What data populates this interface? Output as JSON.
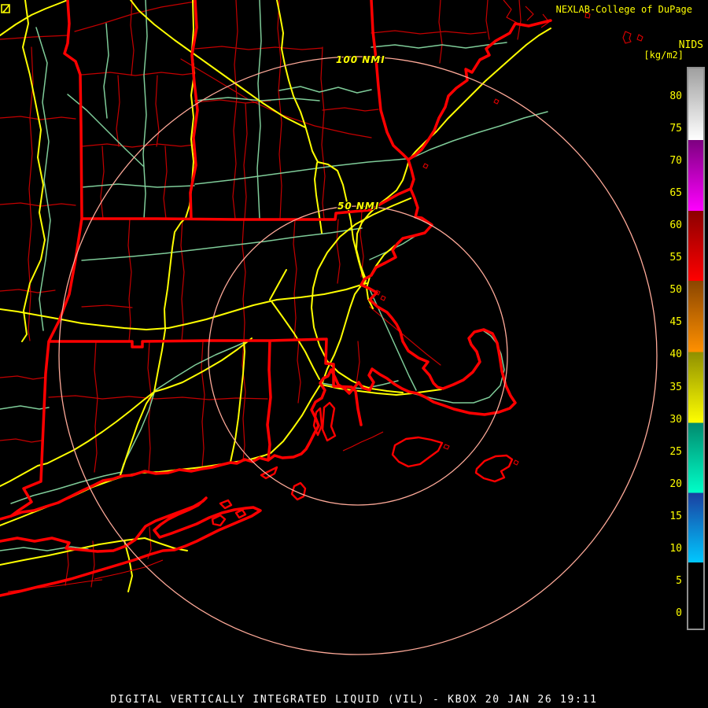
{
  "attribution": {
    "text": "NEXLAB-College of DuPage",
    "logo_icon": "cod-logo-icon"
  },
  "colorbar": {
    "title": "NIDS",
    "units": "[kg/m2]",
    "tick_labels": [
      "80",
      "75",
      "70",
      "65",
      "60",
      "55",
      "50",
      "45",
      "40",
      "35",
      "30",
      "25",
      "20",
      "15",
      "10",
      "5",
      "0"
    ],
    "segments": [
      {
        "name": "gray",
        "color_top": "#a0a0a0",
        "color_bottom": "#ffffff",
        "start_pct": 0,
        "end_pct": 12.8
      },
      {
        "name": "magenta",
        "color_top": "#7d0080",
        "color_bottom": "#ff00ff",
        "start_pct": 12.8,
        "end_pct": 25.4
      },
      {
        "name": "red",
        "color_top": "#8b0000",
        "color_bottom": "#ff0000",
        "start_pct": 25.4,
        "end_pct": 37.9
      },
      {
        "name": "orange",
        "color_top": "#8a4500",
        "color_bottom": "#ff9000",
        "start_pct": 37.9,
        "end_pct": 50.6
      },
      {
        "name": "yellow",
        "color_top": "#8f8f00",
        "color_bottom": "#ffff00",
        "start_pct": 50.6,
        "end_pct": 63.3
      },
      {
        "name": "teal",
        "color_top": "#008a6e",
        "color_bottom": "#00ffc8",
        "start_pct": 63.3,
        "end_pct": 75.8
      },
      {
        "name": "blue",
        "color_top": "#1a3fa0",
        "color_bottom": "#00c8ff",
        "start_pct": 75.8,
        "end_pct": 88.2
      },
      {
        "name": "black",
        "color_top": "#000000",
        "color_bottom": "#000000",
        "start_pct": 88.2,
        "end_pct": 100
      }
    ]
  },
  "map": {
    "range_rings": [
      {
        "label": "100 NMI",
        "radius_px": 380
      },
      {
        "label": "50 NMI",
        "radius_px": 190
      }
    ],
    "colors": {
      "background": "#000000",
      "state_border": "#ff0000",
      "county_border": "#c40000",
      "coast_detail": "#dd0000",
      "highway": "#ffff00",
      "secondary_road": "#7fcc99",
      "range_ring": "#ffaa99",
      "label_yellow": "#ffff00",
      "footer_text": "#ffffff"
    }
  },
  "footer": {
    "title": "DIGITAL VERTICALLY INTEGRATED LIQUID (VIL) - KBOX 20 JAN 26 19:11"
  }
}
